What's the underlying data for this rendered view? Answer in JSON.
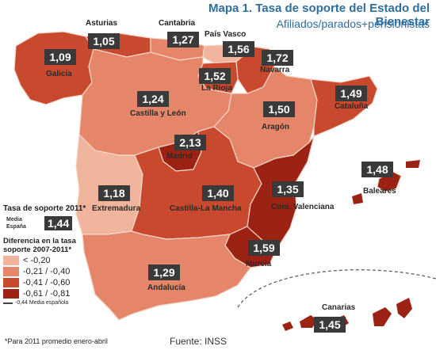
{
  "title": "Mapa 1. Tasa de soporte del Estado del Bienestar",
  "subtitle": "Afiliados/parados+pensionistas",
  "colors": {
    "lt_020": "#f1b49c",
    "r021_040": "#e5866a",
    "r041_060": "#c9492e",
    "r061_081": "#9c2313"
  },
  "regions": [
    {
      "key": "galicia",
      "name": "Galicia",
      "value": "1,09",
      "class": "-0,41 / -0,60"
    },
    {
      "key": "asturias",
      "name": "Asturias",
      "value": "1,05",
      "class": "-0,41 / -0,60"
    },
    {
      "key": "cantabria",
      "name": "Cantabria",
      "value": "1,27",
      "class": "-0,21 / -0,40"
    },
    {
      "key": "paisvasco",
      "name": "País Vasco",
      "value": "1,56",
      "class": "< -0,20"
    },
    {
      "key": "navarra",
      "name": "Navarra",
      "value": "1,72",
      "class": "-0,41 / -0,60"
    },
    {
      "key": "rioja",
      "name": "La Rioja",
      "value": "1,52",
      "class": "-0,41 / -0,60"
    },
    {
      "key": "cyl",
      "name": "Castilla y León",
      "value": "1,24",
      "class": "-0,21 / -0,40"
    },
    {
      "key": "aragon",
      "name": "Aragón",
      "value": "1,50",
      "class": "-0,21 / -0,40"
    },
    {
      "key": "cataluna",
      "name": "Cataluña",
      "value": "1,49",
      "class": "-0,41 / -0,60"
    },
    {
      "key": "madrid",
      "name": "Madrid",
      "value": "2,13",
      "class": "-0,61 / -0,81"
    },
    {
      "key": "extremadura",
      "name": "Extremadura",
      "value": "1,18",
      "class": "< -0,20"
    },
    {
      "key": "clm",
      "name": "Castilla-La Mancha",
      "value": "1,40",
      "class": "-0,41 / -0,60"
    },
    {
      "key": "valenciana",
      "name": "Com. Valenciana",
      "value": "1,35",
      "class": "-0,61 / -0,81"
    },
    {
      "key": "baleares",
      "name": "Baleares",
      "value": "1,48",
      "class": "-0,61 / -0,81"
    },
    {
      "key": "murcia",
      "name": "Murcia",
      "value": "1,59",
      "class": "-0,61 / -0,81"
    },
    {
      "key": "andalucia",
      "name": "Andalucía",
      "value": "1,29",
      "class": "-0,41 / -0,60"
    },
    {
      "key": "canarias",
      "name": "Canarias",
      "value": "1,45",
      "class": "-0,61 / -0,81"
    }
  ],
  "legend": {
    "tasa_title": "Tasa de soporte 2011*",
    "media_label_1": "Media",
    "media_label_2": "España",
    "media_value": "1,44",
    "dif_title": "Diferencia en la tasa soporte 2007-2011*",
    "items": [
      "< -0,20",
      "-0,21 / -0,40",
      "-0,41 / -0,60",
      "-0,61 / -0,81"
    ],
    "media_line": "-0,44 Media española"
  },
  "footnote": "*Para 2011 promedio enero-abril",
  "source": "Fuente: INSS"
}
